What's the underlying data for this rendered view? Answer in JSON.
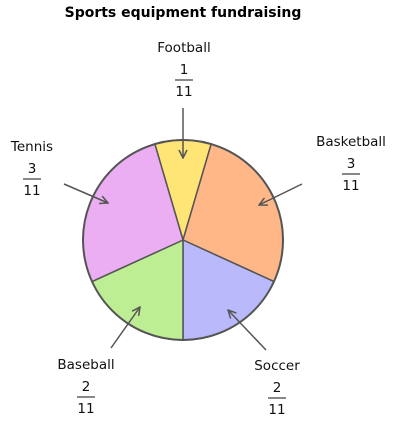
{
  "chart_data": {
    "type": "pie",
    "title": "Sports equipment fundraising",
    "slices": [
      {
        "label": "Football",
        "numerator": "1",
        "denominator": "11",
        "color": "#ffe476"
      },
      {
        "label": "Basketball",
        "numerator": "3",
        "denominator": "11",
        "color": "#ffb787"
      },
      {
        "label": "Soccer",
        "numerator": "2",
        "denominator": "11",
        "color": "#b9b9fb"
      },
      {
        "label": "Baseball",
        "numerator": "2",
        "denominator": "11",
        "color": "#bdee93"
      },
      {
        "label": "Tennis",
        "numerator": "3",
        "denominator": "11",
        "color": "#ebaef3"
      }
    ],
    "values": [
      1,
      3,
      2,
      2,
      3
    ]
  }
}
